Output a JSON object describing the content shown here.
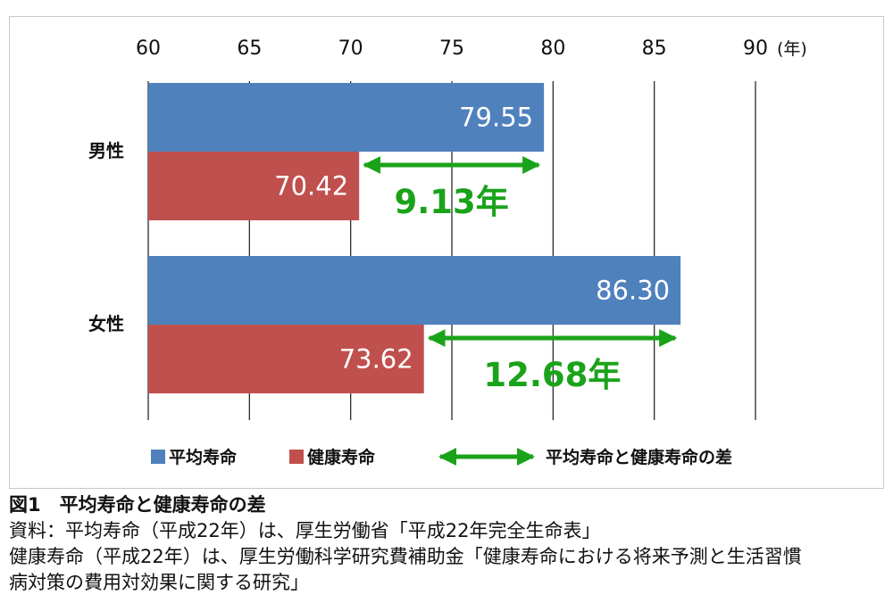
{
  "chart_data": {
    "type": "bar",
    "orientation": "horizontal",
    "categories": [
      "男性",
      "女性"
    ],
    "series": [
      {
        "name": "平均寿命",
        "values": [
          79.55,
          86.3
        ],
        "labels": [
          "79.55",
          "86.30"
        ],
        "color": "#4f81bd"
      },
      {
        "name": "健康寿命",
        "values": [
          70.42,
          73.62
        ],
        "labels": [
          "70.42",
          "73.62"
        ],
        "color": "#c0504d"
      }
    ],
    "differences": [
      {
        "category": "男性",
        "value": 9.13,
        "label": "9.13年"
      },
      {
        "category": "女性",
        "value": 12.68,
        "label": "12.68年"
      }
    ],
    "difference_legend": "平均寿命と健康寿命の差",
    "difference_color": "#1aa31a",
    "xlim": [
      60,
      90
    ],
    "xticks": [
      "60",
      "65",
      "70",
      "75",
      "80",
      "85",
      "90"
    ],
    "x_unit": "(年)",
    "grid": true,
    "legend_position": "bottom"
  },
  "caption": {
    "title": "図1　平均寿命と健康寿命の差",
    "source_line1": "資料：平均寿命（平成22年）は、厚生労働省「平成22年完全生命表」",
    "source_line2": "健康寿命（平成22年）は、厚生労働科学研究費補助金「健康寿命における将来予測と生活習慣",
    "source_line3": "病対策の費用対効果に関する研究」"
  }
}
